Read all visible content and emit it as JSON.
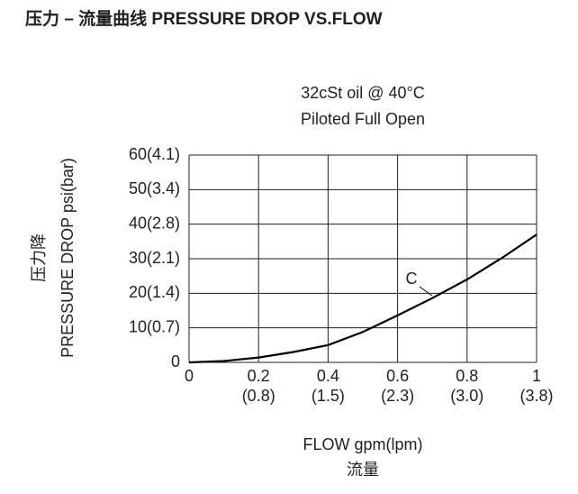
{
  "chart_data": {
    "type": "line",
    "title": "压力 – 流量曲线 PRESSURE DROP VS.FLOW",
    "subtitle": [
      "32cSt  oil @ 40°C",
      "Piloted Full Open"
    ],
    "y_label": [
      "压力降",
      "PRESSURE DROP psi(bar)"
    ],
    "x_label": [
      "FLOW gpm(lpm)",
      "流量"
    ],
    "xlim": [
      0,
      1
    ],
    "ylim": [
      0,
      60
    ],
    "xticks": [
      0,
      0.2,
      0.4,
      0.6,
      0.8,
      1
    ],
    "xtick_sublabels": [
      null,
      "(0.8)",
      "(1.5)",
      "(2.3)",
      "(3.0)",
      "(3.8)"
    ],
    "yticks": [
      0,
      {
        "value": 10,
        "label": "10(0.7)"
      },
      {
        "value": 20,
        "label": "20(1.4)"
      },
      {
        "value": 30,
        "label": "30(2.1)"
      },
      {
        "value": 40,
        "label": "40(2.8)"
      },
      {
        "value": 50,
        "label": "50(3.4)"
      },
      {
        "value": 60,
        "label": "60(4.1)"
      }
    ],
    "grid": true,
    "x": [
      0,
      0.1,
      0.2,
      0.3,
      0.4,
      0.5,
      0.6,
      0.7,
      0.8,
      0.9,
      1
    ],
    "series": [
      {
        "name": "C",
        "color": "#000000",
        "values": [
          0,
          0.4,
          1.4,
          3,
          5,
          8.8,
          13.6,
          18.6,
          24,
          30.2,
          37
        ]
      }
    ]
  }
}
